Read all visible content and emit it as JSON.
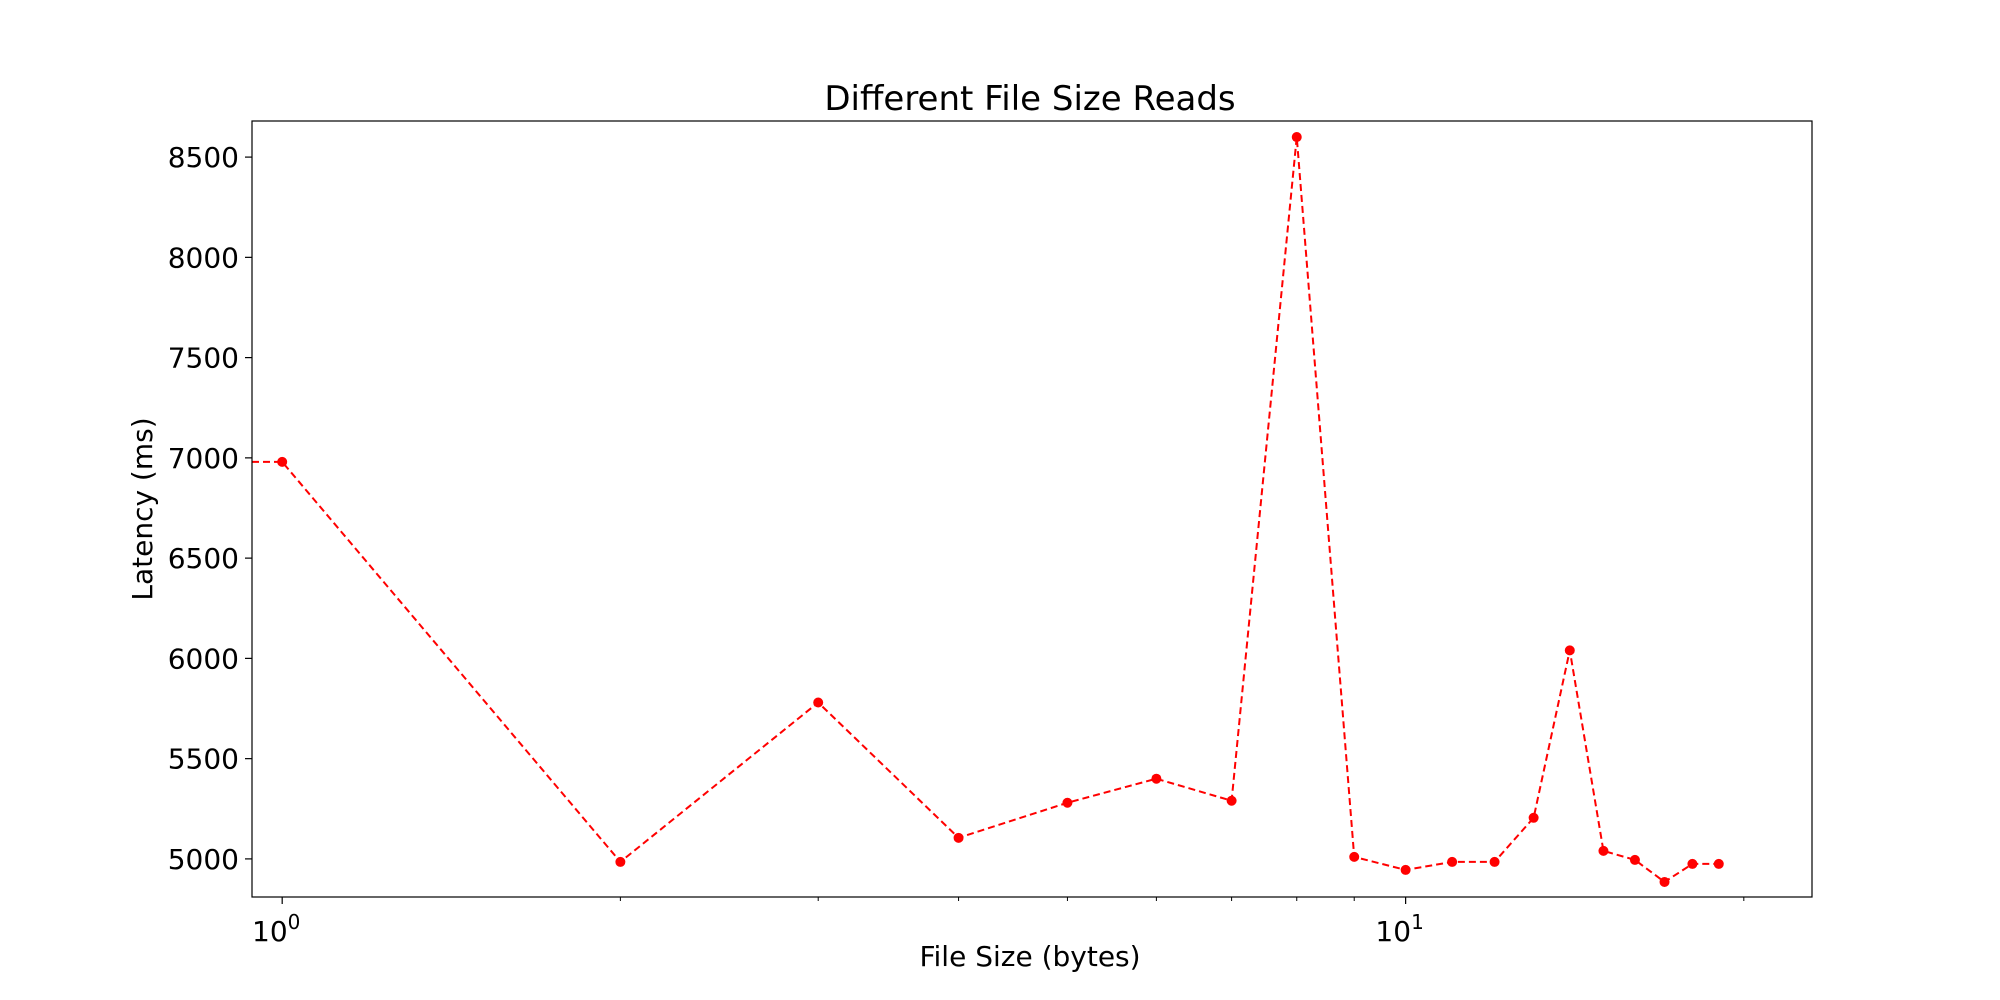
{
  "chart_data": {
    "type": "line",
    "title": "Different File Size Reads",
    "xlabel": "File Size (bytes)",
    "ylabel": "Latency (ms)",
    "xscale": "log",
    "xlim": [
      0.94,
      23
    ],
    "ylim": [
      4810,
      8680
    ],
    "grid": false,
    "legend": "none",
    "x_tick_labels": [
      {
        "value": 1,
        "base": "10",
        "exp": "0"
      },
      {
        "value": 10,
        "base": "10",
        "exp": "1"
      }
    ],
    "y_ticks": [
      5000,
      5500,
      6000,
      6500,
      7000,
      7500,
      8000,
      8500
    ],
    "series": [
      {
        "color": "#ff0000",
        "linestyle": "dashed",
        "marker": "circle",
        "x": [
          1,
          2,
          3,
          4,
          5,
          6,
          7,
          8,
          9,
          10,
          11,
          12,
          13,
          14,
          15,
          16,
          17,
          18,
          19
        ],
        "y": [
          6980,
          4985,
          5780,
          5105,
          5280,
          5400,
          5290,
          8600,
          5010,
          4945,
          4985,
          4985,
          5205,
          6040,
          5040,
          4995,
          4885,
          4975,
          4975
        ]
      }
    ]
  }
}
